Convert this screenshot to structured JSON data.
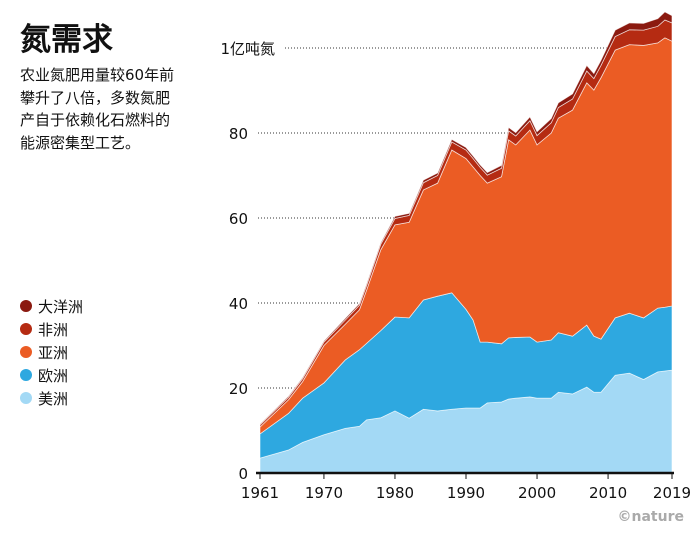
{
  "title": "氮需求",
  "subtitle_lines": [
    "农业氮肥用量较60年前",
    "攀升了八倍，多数氮肥",
    "产自于依赖化石燃料的",
    "能源密集型工艺。"
  ],
  "credit": "©nature",
  "chart_data": {
    "type": "area",
    "stacked": true,
    "title": "氮需求",
    "xlabel": "",
    "ylabel": "",
    "xlim": [
      1961,
      2019
    ],
    "ylim": [
      0,
      108
    ],
    "grid": "dotted horizontal",
    "legend_placement": "left",
    "x_ticks": [
      1961,
      1970,
      1980,
      1990,
      2000,
      2010,
      2019
    ],
    "x_tick_labels": [
      "1961",
      "1970",
      "1980",
      "1990",
      "2000",
      "2010",
      "2019"
    ],
    "y_ticks": [
      0,
      20,
      40,
      60,
      80,
      100
    ],
    "y_tick_labels": [
      "0",
      "20",
      "40",
      "60",
      "80",
      "1亿吨氮"
    ],
    "x": [
      1961,
      1965,
      1967,
      1970,
      1973,
      1975,
      1976,
      1978,
      1980,
      1982,
      1984,
      1986,
      1988,
      1990,
      1991,
      1992,
      1993,
      1995,
      1996,
      1997,
      1999,
      2000,
      2002,
      2003,
      2005,
      2007,
      2008,
      2009,
      2011,
      2013,
      2015,
      2017,
      2018,
      2019
    ],
    "series": [
      {
        "name": "美洲",
        "color": "#a3d9f5",
        "values": [
          3.5,
          5.4,
          7.2,
          9,
          10.5,
          11,
          12.5,
          13,
          14.6,
          12.9,
          15,
          14.6,
          15,
          15.3,
          15.3,
          15.3,
          16.5,
          16.7,
          17.4,
          17.6,
          17.9,
          17.6,
          17.6,
          19,
          18.6,
          20.2,
          19,
          19,
          23,
          23.5,
          22,
          23.8,
          24,
          24.2
        ]
      },
      {
        "name": "欧洲",
        "color": "#2ea8e0",
        "values": [
          5.7,
          8.6,
          10.4,
          12.2,
          16.1,
          18,
          18,
          20.5,
          22.1,
          23.6,
          25.7,
          27,
          27.4,
          23.2,
          20.7,
          15.5,
          14.3,
          13.7,
          14.4,
          14.3,
          14.1,
          13.2,
          13.7,
          14,
          13.6,
          14.6,
          13.2,
          12.5,
          13.5,
          14.1,
          14.5,
          15,
          15,
          15.1
        ]
      },
      {
        "name": "亚洲",
        "color": "#eb5c24",
        "values": [
          1.6,
          3.2,
          3.9,
          8.8,
          8.4,
          9.4,
          12.5,
          19,
          21.7,
          22.5,
          25.9,
          26.6,
          33.6,
          35.5,
          36,
          39.2,
          37.4,
          39.3,
          46.6,
          45.3,
          48.7,
          46.4,
          48.7,
          50.5,
          53.2,
          57,
          57.9,
          61.5,
          63,
          63.2,
          64.1,
          62.4,
          63.4,
          62.3
        ]
      },
      {
        "name": "非洲",
        "color": "#b52b12",
        "values": [
          0.5,
          0.6,
          0.7,
          0.8,
          1.0,
          1.1,
          1.1,
          1.3,
          1.5,
          1.6,
          1.7,
          1.8,
          1.9,
          2.0,
          2.0,
          1.9,
          1.9,
          2.0,
          2.1,
          2.1,
          2.2,
          2.2,
          2.4,
          2.5,
          2.6,
          2.8,
          2.7,
          2.9,
          3.2,
          3.5,
          3.6,
          3.9,
          4.2,
          4.3
        ]
      },
      {
        "name": "大洋洲",
        "color": "#8b1a10",
        "values": [
          0.2,
          0.3,
          0.3,
          0.3,
          0.4,
          0.4,
          0.4,
          0.4,
          0.5,
          0.5,
          0.6,
          0.6,
          0.6,
          0.6,
          0.6,
          0.6,
          0.6,
          0.7,
          0.8,
          0.8,
          0.9,
          0.9,
          1.0,
          1.1,
          1.2,
          1.3,
          1.2,
          1.2,
          1.5,
          1.6,
          1.6,
          1.8,
          1.9,
          1.7
        ]
      }
    ],
    "legend_order": [
      "大洋洲",
      "非洲",
      "亚洲",
      "欧洲",
      "美洲"
    ]
  }
}
